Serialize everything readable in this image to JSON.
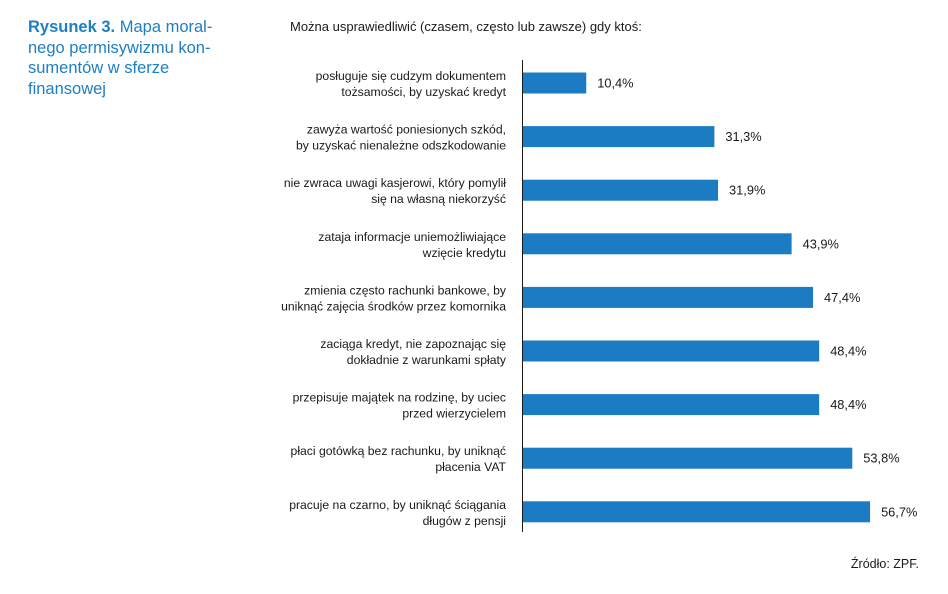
{
  "caption": {
    "number": "Rysunek 3.",
    "lines": [
      "Mapa moral-",
      "nego permisywizmu kon-",
      "sumentów w sferze",
      "finansowej"
    ]
  },
  "source": "Źródło: ZPF.",
  "chart_data": {
    "type": "bar",
    "orientation": "horizontal",
    "title": "Można usprawiedliwić (czasem, często lub zawsze) gdy ktoś:",
    "categories": [
      [
        "posługuje się cudzym dokumentem",
        "tożsamości, by uzyskać kredyt"
      ],
      [
        "zawyża wartość poniesionych szkód,",
        "by uzyskać nienależne odszkodowanie"
      ],
      [
        "nie zwraca uwagi kasjerowi, który pomylił",
        "się na własną niekorzyść"
      ],
      [
        "zataja informacje uniemożliwiające",
        "wzięcie kredytu"
      ],
      [
        "zmienia często rachunki bankowe, by",
        "uniknąć zajęcia środków przez komornika"
      ],
      [
        "zaciąga kredyt, nie zapoznając się",
        "dokładnie z warunkami spłaty"
      ],
      [
        "przepisuje majątek na rodzinę, by uciec",
        "przed wierzycielem"
      ],
      [
        "płaci gotówką bez rachunku, by uniknąć",
        "płacenia VAT"
      ],
      [
        "pracuje na czarno, by uniknąć ściągania",
        "długów z pensji"
      ]
    ],
    "values": [
      10.4,
      31.3,
      31.9,
      43.9,
      47.4,
      48.4,
      48.4,
      53.8,
      56.7
    ],
    "value_labels": [
      "10,4%",
      "31,3%",
      "31,9%",
      "43,9%",
      "47,4%",
      "48,4%",
      "48,4%",
      "53,8%",
      "56,7%"
    ],
    "bar_color": "#1b7cc4",
    "grid": false
  }
}
